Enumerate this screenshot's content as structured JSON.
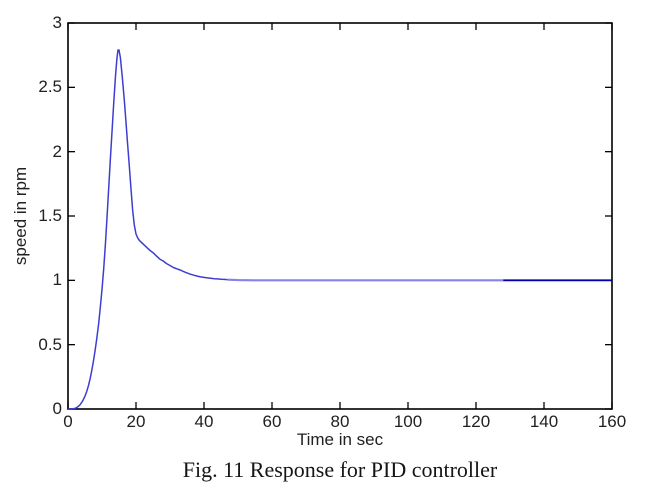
{
  "figure": {
    "caption": "Fig. 11 Response for PID controller"
  },
  "chart_data": {
    "type": "line",
    "title": "",
    "xlabel": "Time in sec",
    "ylabel": "speed in rpm",
    "xlim": [
      0,
      160
    ],
    "ylim": [
      0,
      3
    ],
    "x_ticks": [
      0,
      20,
      40,
      60,
      80,
      100,
      120,
      140,
      160
    ],
    "y_ticks": [
      0,
      0.5,
      1,
      1.5,
      2,
      2.5,
      3
    ],
    "grid": false,
    "legend_position": "none",
    "axis_color": "#000000",
    "tick_label_color": "#212121",
    "background_color": "#ffffff",
    "series": [
      {
        "name": "PID controller response",
        "color": "#3d3dd4",
        "points": [
          [
            0,
            0
          ],
          [
            1,
            0.001
          ],
          [
            2,
            0.004
          ],
          [
            2.5,
            0.01
          ],
          [
            3,
            0.02
          ],
          [
            3.5,
            0.032
          ],
          [
            4,
            0.05
          ],
          [
            4.5,
            0.072
          ],
          [
            5,
            0.1
          ],
          [
            5.5,
            0.135
          ],
          [
            6,
            0.18
          ],
          [
            6.5,
            0.235
          ],
          [
            7,
            0.3
          ],
          [
            7.5,
            0.375
          ],
          [
            8,
            0.46
          ],
          [
            8.5,
            0.555
          ],
          [
            9,
            0.66
          ],
          [
            9.5,
            0.79
          ],
          [
            10,
            0.93
          ],
          [
            10.5,
            1.09
          ],
          [
            11,
            1.28
          ],
          [
            11.5,
            1.5
          ],
          [
            12,
            1.73
          ],
          [
            12.5,
            1.96
          ],
          [
            13,
            2.18
          ],
          [
            13.5,
            2.4
          ],
          [
            14,
            2.6
          ],
          [
            14.4,
            2.73
          ],
          [
            14.7,
            2.79
          ],
          [
            15,
            2.79
          ],
          [
            15.4,
            2.73
          ],
          [
            16,
            2.57
          ],
          [
            16.5,
            2.42
          ],
          [
            17,
            2.25
          ],
          [
            17.5,
            2.07
          ],
          [
            18,
            1.9
          ],
          [
            18.5,
            1.72
          ],
          [
            19,
            1.55
          ],
          [
            19.5,
            1.43
          ],
          [
            20,
            1.36
          ],
          [
            20.5,
            1.33
          ],
          [
            21,
            1.31
          ],
          [
            22,
            1.285
          ],
          [
            23,
            1.26
          ],
          [
            24,
            1.235
          ],
          [
            25,
            1.215
          ],
          [
            26,
            1.19
          ],
          [
            27,
            1.165
          ],
          [
            28,
            1.15
          ],
          [
            29,
            1.13
          ],
          [
            30,
            1.115
          ],
          [
            31,
            1.1
          ],
          [
            32,
            1.09
          ],
          [
            33,
            1.08
          ],
          [
            34,
            1.068
          ],
          [
            35,
            1.058
          ],
          [
            36,
            1.048
          ],
          [
            37,
            1.04
          ],
          [
            38,
            1.033
          ],
          [
            39,
            1.027
          ],
          [
            40,
            1.023
          ],
          [
            41,
            1.019
          ],
          [
            42,
            1.016
          ],
          [
            43,
            1.013
          ],
          [
            44,
            1.011
          ],
          [
            45,
            1.009
          ],
          [
            46,
            1.007
          ],
          [
            47,
            1.005
          ],
          [
            48,
            1.004
          ],
          [
            50,
            1.002
          ],
          [
            52,
            1.001
          ],
          [
            55,
            1.0
          ],
          [
            60,
            1.0
          ],
          [
            70,
            1.0
          ],
          [
            80,
            1.0
          ],
          [
            90,
            1.0
          ],
          [
            100,
            1.0
          ],
          [
            110,
            1.0
          ],
          [
            120,
            1.0
          ],
          [
            128,
            1.0
          ],
          [
            140,
            1.0
          ],
          [
            150,
            1.0
          ],
          [
            160,
            1.0
          ]
        ]
      }
    ],
    "style_segments": [
      {
        "from_x": 0,
        "to_x": 47,
        "color": "#3d3dd4",
        "width": 1.5
      },
      {
        "from_x": 47,
        "to_x": 128,
        "color": "#8383e8",
        "width": 2.1
      },
      {
        "from_x": 128,
        "to_x": 160,
        "color": "#0000ae",
        "width": 1.8
      }
    ]
  }
}
